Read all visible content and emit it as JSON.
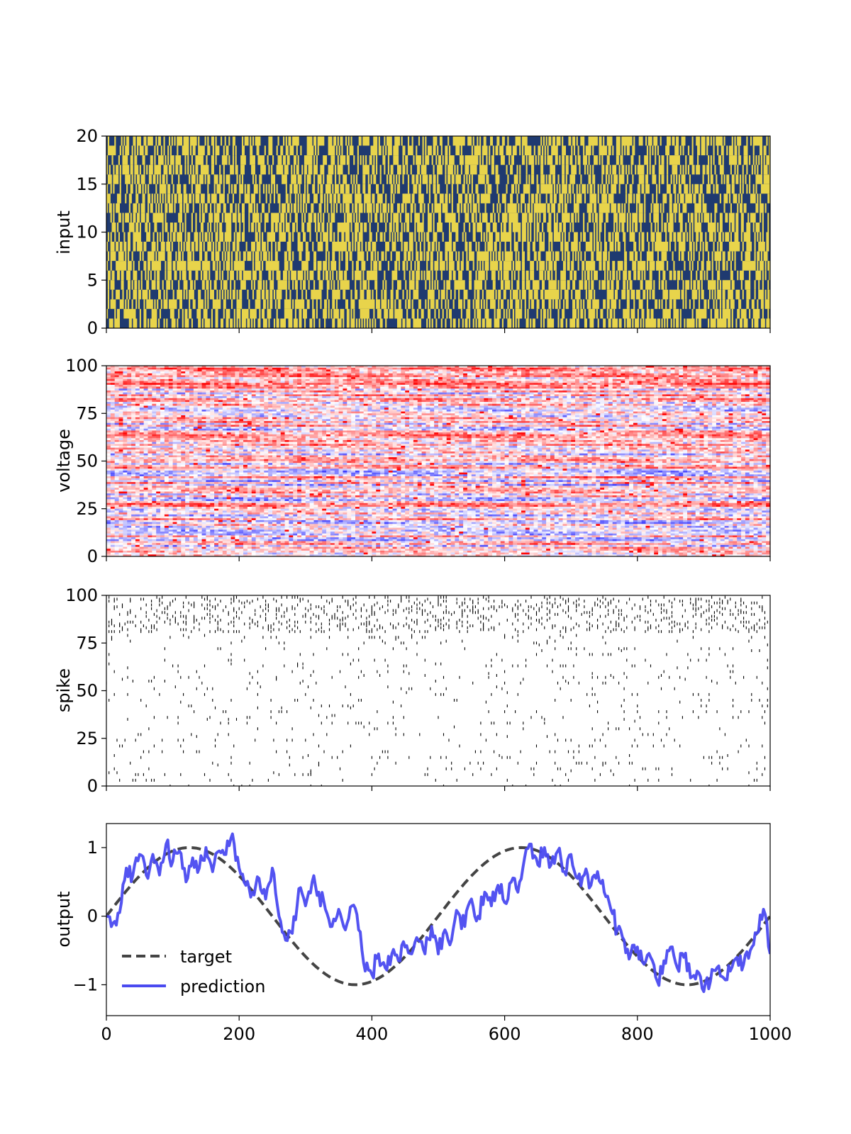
{
  "chart_data": [
    {
      "type": "heatmap",
      "ylabel": "input",
      "xlim": [
        0,
        1000
      ],
      "ylim": [
        0,
        20
      ],
      "yticks": [
        0,
        5,
        10,
        15,
        20
      ],
      "rows": 20,
      "colors": {
        "low": "#1f3a70",
        "high": "#e8d44b"
      }
    },
    {
      "type": "heatmap",
      "ylabel": "voltage",
      "xlim": [
        0,
        1000
      ],
      "ylim": [
        0,
        100
      ],
      "yticks": [
        0,
        25,
        50,
        75,
        100
      ],
      "rows": 100,
      "colormap": "bwr"
    },
    {
      "type": "scatter",
      "ylabel": "spike",
      "xlim": [
        0,
        1000
      ],
      "ylim": [
        0,
        100
      ],
      "yticks": [
        0,
        25,
        50,
        75,
        100
      ],
      "marker_color": "#000000"
    },
    {
      "type": "line",
      "ylabel": "output",
      "xlabel": "",
      "xlim": [
        0,
        1000
      ],
      "ylim": [
        -1.45,
        1.35
      ],
      "xticks": [
        0,
        200,
        400,
        600,
        800,
        1000
      ],
      "yticks": [
        -1,
        0,
        1
      ],
      "ytick_labels": [
        "−1",
        "0",
        "1"
      ],
      "legend_position": "lower-left",
      "series": [
        {
          "name": "target",
          "style": "dashed",
          "color": "#444444",
          "function": "sin(2*pi*x/500)"
        },
        {
          "name": "prediction",
          "style": "solid",
          "color": "#4a4af0",
          "points": [
            [
              0,
              0
            ],
            [
              10,
              -0.1
            ],
            [
              20,
              0.05
            ],
            [
              30,
              0.7
            ],
            [
              40,
              0.6
            ],
            [
              50,
              0.9
            ],
            [
              60,
              0.6
            ],
            [
              70,
              0.9
            ],
            [
              80,
              0.6
            ],
            [
              90,
              1.05
            ],
            [
              100,
              0.8
            ],
            [
              110,
              0.95
            ],
            [
              120,
              0.5
            ],
            [
              130,
              0.85
            ],
            [
              140,
              0.7
            ],
            [
              150,
              1.0
            ],
            [
              160,
              0.65
            ],
            [
              170,
              0.95
            ],
            [
              180,
              0.9
            ],
            [
              190,
              1.2
            ],
            [
              200,
              0.7
            ],
            [
              210,
              0.45
            ],
            [
              220,
              0.35
            ],
            [
              230,
              0.55
            ],
            [
              240,
              0.25
            ],
            [
              250,
              0.7
            ],
            [
              260,
              0.0
            ],
            [
              270,
              -0.35
            ],
            [
              280,
              -0.25
            ],
            [
              290,
              0.4
            ],
            [
              300,
              0.15
            ],
            [
              310,
              0.5
            ],
            [
              320,
              0.35
            ],
            [
              330,
              0.1
            ],
            [
              340,
              -0.15
            ],
            [
              350,
              0.1
            ],
            [
              360,
              -0.2
            ],
            [
              370,
              0.15
            ],
            [
              380,
              -0.2
            ],
            [
              390,
              -0.8
            ],
            [
              400,
              -0.85
            ],
            [
              410,
              -0.55
            ],
            [
              420,
              -0.75
            ],
            [
              430,
              -0.55
            ],
            [
              440,
              -0.65
            ],
            [
              450,
              -0.45
            ],
            [
              460,
              -0.55
            ],
            [
              470,
              -0.35
            ],
            [
              480,
              -0.55
            ],
            [
              490,
              -0.15
            ],
            [
              500,
              -0.55
            ],
            [
              510,
              -0.2
            ],
            [
              520,
              -0.35
            ],
            [
              530,
              0.05
            ],
            [
              540,
              -0.15
            ],
            [
              550,
              0.25
            ],
            [
              560,
              0.0
            ],
            [
              570,
              0.35
            ],
            [
              580,
              0.15
            ],
            [
              590,
              0.45
            ],
            [
              600,
              0.2
            ],
            [
              610,
              0.5
            ],
            [
              620,
              0.35
            ],
            [
              630,
              0.85
            ],
            [
              640,
              1.05
            ],
            [
              650,
              0.75
            ],
            [
              660,
              1.0
            ],
            [
              670,
              0.75
            ],
            [
              680,
              0.95
            ],
            [
              690,
              0.65
            ],
            [
              700,
              0.9
            ],
            [
              710,
              0.55
            ],
            [
              720,
              0.6
            ],
            [
              730,
              0.45
            ],
            [
              740,
              0.65
            ],
            [
              750,
              0.35
            ],
            [
              760,
              0.1
            ],
            [
              770,
              -0.2
            ],
            [
              780,
              -0.35
            ],
            [
              790,
              -0.55
            ],
            [
              800,
              -0.45
            ],
            [
              810,
              -0.7
            ],
            [
              820,
              -0.6
            ],
            [
              830,
              -0.95
            ],
            [
              840,
              -0.65
            ],
            [
              850,
              -0.45
            ],
            [
              860,
              -0.75
            ],
            [
              870,
              -0.6
            ],
            [
              880,
              -0.9
            ],
            [
              890,
              -0.8
            ],
            [
              900,
              -1.1
            ],
            [
              910,
              -0.95
            ],
            [
              920,
              -0.75
            ],
            [
              930,
              -0.9
            ],
            [
              940,
              -0.8
            ],
            [
              950,
              -0.6
            ],
            [
              960,
              -0.7
            ],
            [
              970,
              -0.5
            ],
            [
              980,
              -0.25
            ],
            [
              990,
              0.1
            ],
            [
              1000,
              -0.55
            ]
          ]
        }
      ]
    }
  ]
}
